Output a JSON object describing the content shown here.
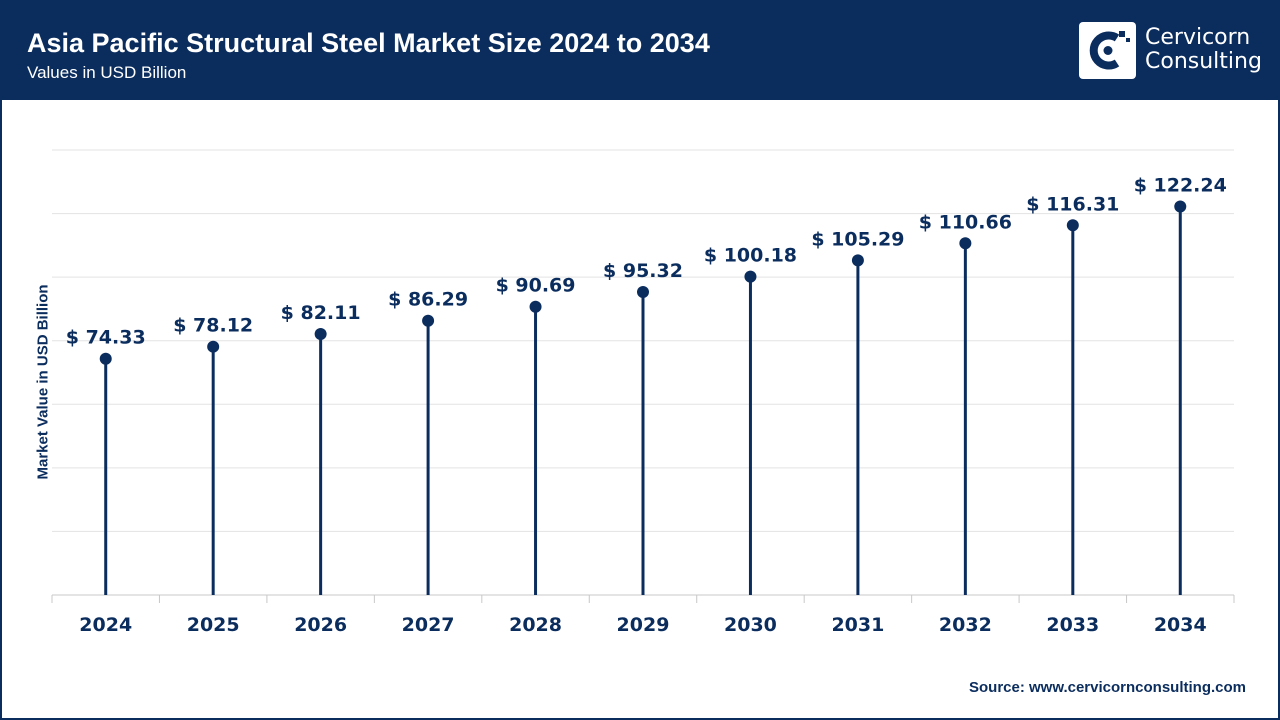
{
  "header": {
    "title": "Asia Pacific Structural Steel Market Size 2024 to 2034",
    "subtitle": "Values in USD Billion"
  },
  "logo": {
    "line1": "Cervicorn",
    "line2": "Consulting",
    "icon": "cervicorn-logo-icon"
  },
  "footer": {
    "source": "Source: www.cervicornconsulting.com"
  },
  "colors": {
    "primary": "#0b2d5e",
    "grid": "#e3e3e3",
    "background": "#ffffff"
  },
  "chart_data": {
    "type": "lollipop",
    "title": "Asia Pacific Structural Steel Market Size 2024 to 2034",
    "subtitle": "Values in USD Billion",
    "xlabel": "",
    "ylabel": "Market Value in USD Billion",
    "categories": [
      "2024",
      "2025",
      "2026",
      "2027",
      "2028",
      "2029",
      "2030",
      "2031",
      "2032",
      "2033",
      "2034"
    ],
    "values": [
      74.33,
      78.12,
      82.11,
      86.29,
      90.69,
      95.32,
      100.18,
      105.29,
      110.66,
      116.31,
      122.24
    ],
    "value_labels": [
      "$ 74.33",
      "$ 78.12",
      "$ 82.11",
      "$ 86.29",
      "$ 90.69",
      "$ 95.32",
      "$ 100.18",
      "$ 105.29",
      "$ 110.66",
      "$ 116.31",
      "$ 122.24"
    ],
    "ylim": [
      0,
      140
    ],
    "y_tick_labels_shown": false,
    "grid": true,
    "legend": "none"
  }
}
